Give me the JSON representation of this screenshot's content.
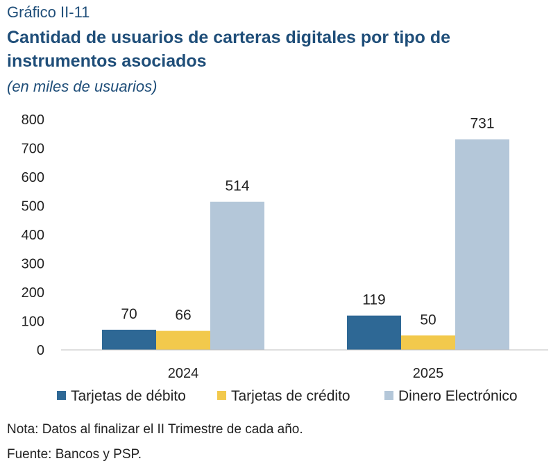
{
  "header": {
    "kicker": "Gráfico II-11",
    "title": "Cantidad de usuarios de carteras digitales por tipo de instrumentos asociados",
    "subtitle": "(en miles de usuarios)"
  },
  "footer": {
    "note": "Nota: Datos al finalizar el II Trimestre de cada año.",
    "source": "Fuente: Bancos y PSP."
  },
  "chart_data": {
    "type": "bar",
    "categories": [
      "2024",
      "2025"
    ],
    "series": [
      {
        "name": "Tarjetas de débito",
        "values": [
          70,
          119
        ],
        "color": "#2e6895"
      },
      {
        "name": "Tarjetas de crédito",
        "values": [
          66,
          50
        ],
        "color": "#f2c94c"
      },
      {
        "name": "Dinero Electrónico",
        "values": [
          514,
          731
        ],
        "color": "#b4c7d9"
      }
    ],
    "yticks": [
      0,
      100,
      200,
      300,
      400,
      500,
      600,
      700,
      800
    ],
    "ylim": [
      0,
      800
    ],
    "grid": false,
    "legend": "bottom",
    "data_labels": true
  }
}
